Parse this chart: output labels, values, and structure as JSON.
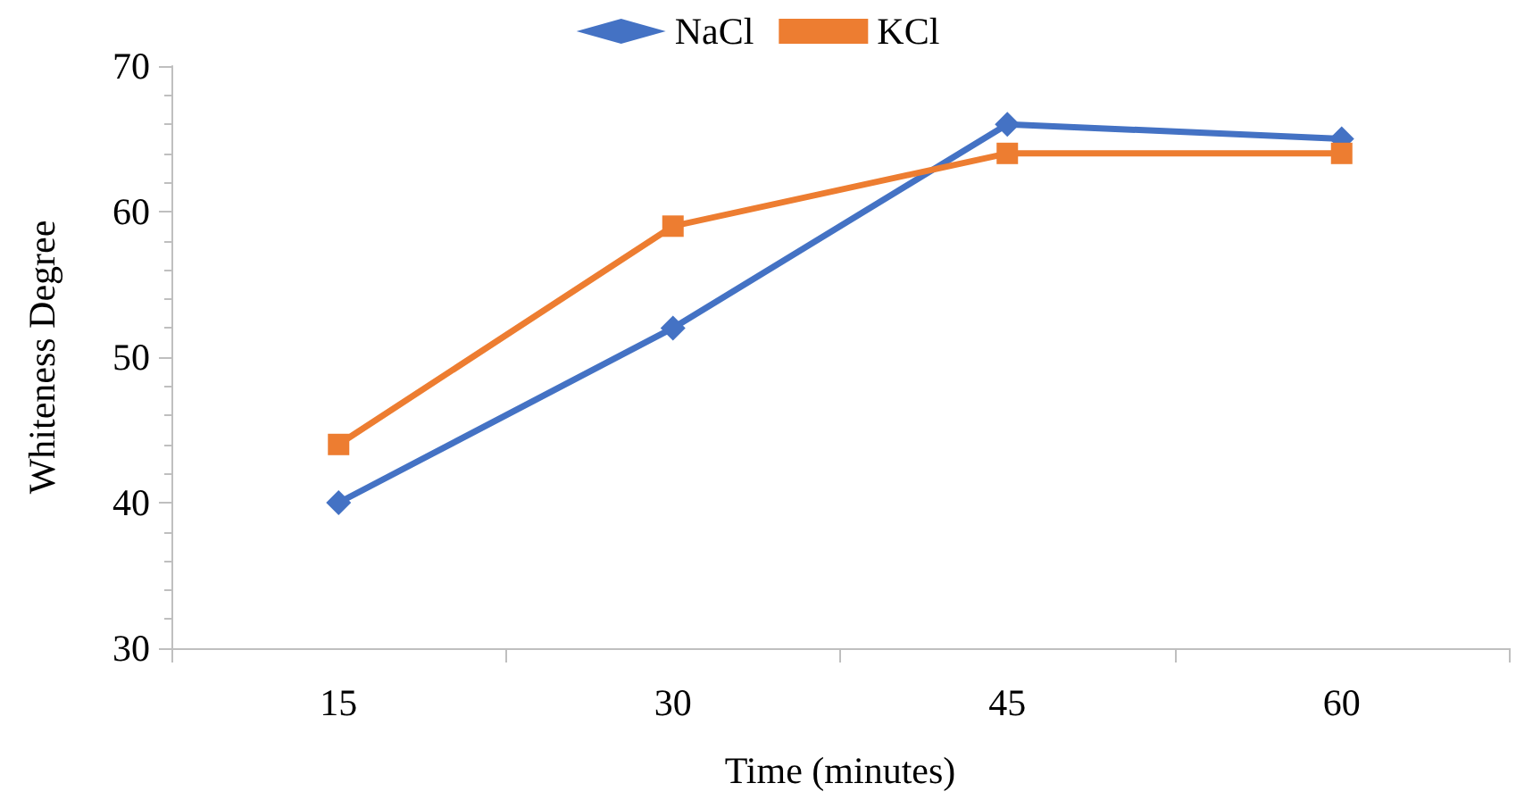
{
  "chart_data": {
    "type": "line",
    "xlabel": "Time (minutes)",
    "ylabel": "Whiteness Degree",
    "categories": [
      "15",
      "30",
      "45",
      "60"
    ],
    "series": [
      {
        "name": "NaCl",
        "color": "#4472c4",
        "marker": "diamond",
        "values": [
          40,
          52,
          66,
          65
        ]
      },
      {
        "name": "KCl",
        "color": "#ed7d31",
        "marker": "square",
        "values": [
          44,
          59,
          64,
          64
        ]
      }
    ],
    "ylim": [
      30,
      70
    ],
    "yticks": [
      30,
      40,
      50,
      60,
      70
    ],
    "grid": false,
    "legend": "top"
  }
}
